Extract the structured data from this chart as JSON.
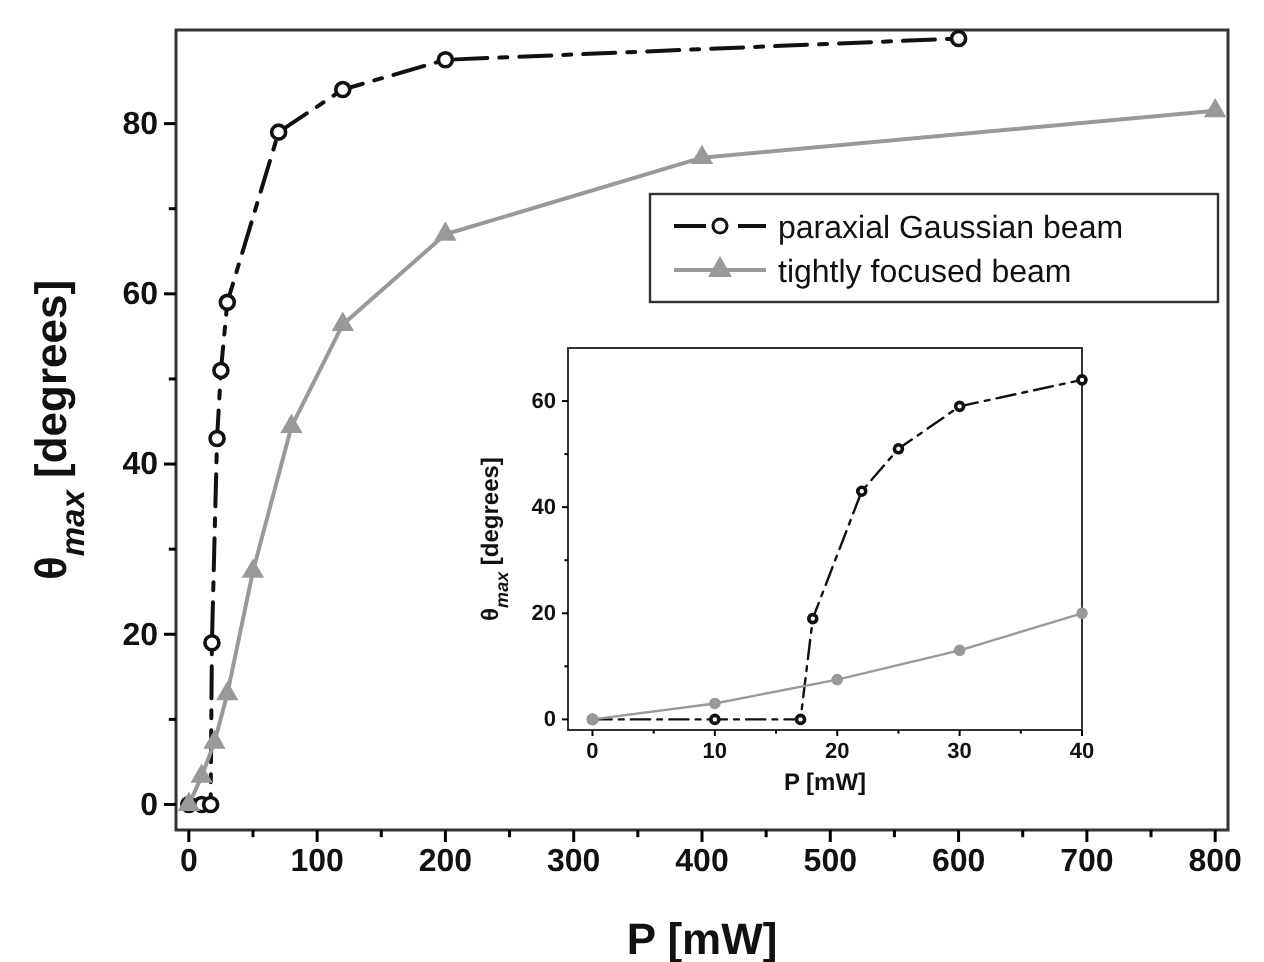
{
  "chart_data": [
    {
      "type": "line",
      "xlabel": "P [mW]",
      "ylabel": "θ$_{max}$  [degrees]",
      "xlim": [
        -10,
        810
      ],
      "ylim": [
        -3,
        91
      ],
      "xticks": [
        0,
        {
          "value": 50,
          "label": null
        },
        100,
        {
          "value": 150,
          "label": null
        },
        200,
        {
          "value": 250,
          "label": null
        },
        300,
        {
          "value": 350,
          "label": null
        },
        400,
        {
          "value": 450,
          "label": null
        },
        500,
        {
          "value": 550,
          "label": null
        },
        600,
        {
          "value": 650,
          "label": null
        },
        700,
        {
          "value": 750,
          "label": null
        },
        800
      ],
      "yticks": [
        0,
        {
          "value": 10,
          "label": null
        },
        20,
        {
          "value": 30,
          "label": null
        },
        40,
        {
          "value": 50,
          "label": null
        },
        60,
        {
          "value": 70,
          "label": null
        },
        80
      ],
      "grid": false,
      "legend": "top right",
      "series": [
        {
          "name": "paraxial Gaussian beam",
          "color": "#111111",
          "marker": "circle",
          "line_style": "dashed",
          "x": [
            0,
            10,
            17,
            18,
            22,
            25,
            30,
            70,
            120,
            200,
            600
          ],
          "values": [
            0,
            0,
            0,
            19,
            43,
            51,
            59,
            79,
            84,
            87.5,
            90
          ]
        },
        {
          "name": "tightly focused beam",
          "color": "#999999",
          "marker": "triangle",
          "line_style": "solid",
          "x": [
            0,
            10,
            20,
            30,
            50,
            80,
            120,
            200,
            400,
            800
          ],
          "values": [
            0,
            3.3,
            7.3,
            13,
            27.4,
            44.4,
            56.4,
            67,
            76,
            81.5
          ]
        }
      ]
    },
    {
      "type": "line",
      "xlabel": "P [mW]",
      "ylabel": "θ$_{max}$  [degrees]",
      "xlim": [
        -2,
        40
      ],
      "ylim": [
        -2,
        70
      ],
      "xticks": [
        0,
        {
          "value": 5,
          "label": null
        },
        10,
        {
          "value": 15,
          "label": null
        },
        20,
        {
          "value": 25,
          "label": null
        },
        30,
        {
          "value": 35,
          "label": null
        },
        40
      ],
      "yticks": [
        0,
        {
          "value": 10,
          "label": null
        },
        20,
        {
          "value": 30,
          "label": null
        },
        40,
        {
          "value": 50,
          "label": null
        },
        60
      ],
      "grid": false,
      "legend": false,
      "series": [
        {
          "color": "#111111",
          "marker": "circle",
          "line_style": "dashed",
          "x": [
            0,
            10,
            17,
            18,
            22,
            25,
            30,
            40
          ],
          "values": [
            0,
            0,
            0,
            19,
            43,
            51,
            59,
            64
          ]
        },
        {
          "color": "#999999",
          "marker": "circle",
          "line_style": "solid",
          "x": [
            0,
            10,
            20,
            30,
            40
          ],
          "values": [
            0,
            3,
            7.5,
            13,
            20
          ]
        }
      ]
    }
  ]
}
